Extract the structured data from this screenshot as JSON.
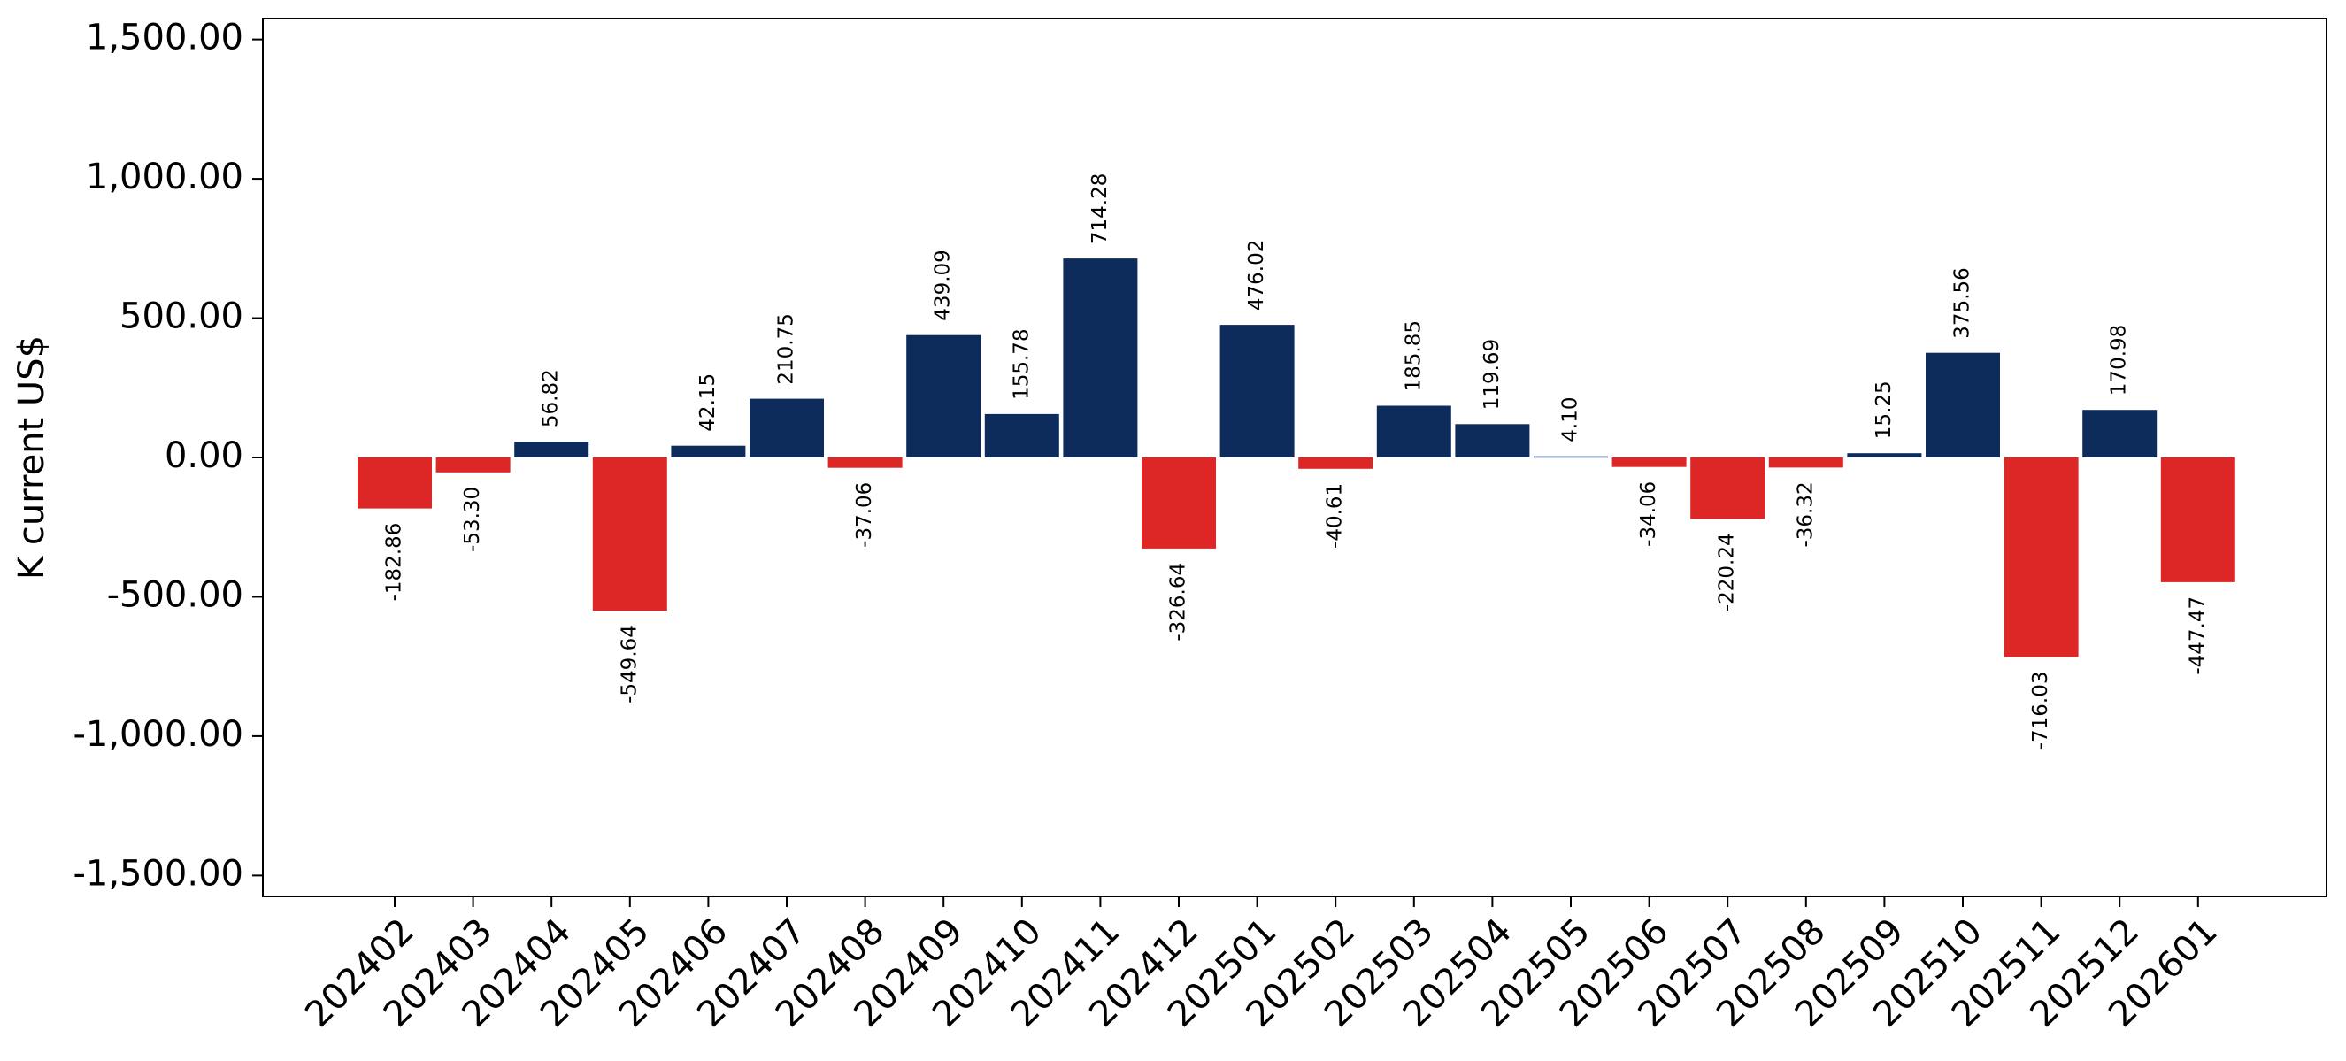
{
  "chart_data": {
    "type": "bar",
    "title": "",
    "xlabel": "",
    "ylabel": "K current US$",
    "ylim": [
      -1575,
      1575
    ],
    "y_ticks": [
      -1500,
      -1000,
      -500,
      0,
      500,
      1000,
      1500
    ],
    "y_tick_labels": [
      "-1,500.00",
      "-1,000.00",
      "-500.00",
      "0.00",
      "500.00",
      "1,000.00",
      "1,500.00"
    ],
    "grid": false,
    "legend": "none",
    "positive_color": "#0d2b5b",
    "negative_color": "#dd2626",
    "categories": [
      "202402",
      "202403",
      "202404",
      "202405",
      "202406",
      "202407",
      "202408",
      "202409",
      "202410",
      "202411",
      "202412",
      "202501",
      "202502",
      "202503",
      "202504",
      "202505",
      "202506",
      "202507",
      "202508",
      "202509",
      "202510",
      "202511",
      "202512",
      "202601"
    ],
    "values": [
      -182.86,
      -53.3,
      56.82,
      -549.64,
      42.15,
      210.75,
      -37.06,
      439.09,
      155.78,
      714.28,
      -326.64,
      476.02,
      -40.61,
      185.85,
      119.69,
      4.1,
      -34.06,
      -220.24,
      -36.32,
      15.25,
      375.56,
      -716.03,
      170.98,
      -447.47
    ],
    "value_labels": [
      "-182.86",
      "-53.30",
      "56.82",
      "-549.64",
      "42.15",
      "210.75",
      "-37.06",
      "439.09",
      "155.78",
      "714.28",
      "-326.64",
      "476.02",
      "-40.61",
      "185.85",
      "119.69",
      "4.10",
      "-34.06",
      "-220.24",
      "-36.32",
      "15.25",
      "375.56",
      "-716.03",
      "170.98",
      "-447.47"
    ]
  }
}
